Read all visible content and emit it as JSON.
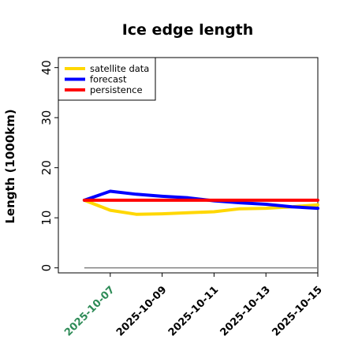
{
  "chart_data": {
    "type": "line",
    "title": "Ice edge length",
    "xlabel": "",
    "ylabel": "Length (1000km)",
    "ylim": [
      -1,
      42
    ],
    "yticks": [
      0,
      10,
      20,
      30,
      40
    ],
    "x": [
      "2025-10-06",
      "2025-10-07",
      "2025-10-08",
      "2025-10-09",
      "2025-10-10",
      "2025-10-11",
      "2025-10-12",
      "2025-10-13",
      "2025-10-14",
      "2025-10-15"
    ],
    "xticks": [
      "2025-10-07",
      "2025-10-09",
      "2025-10-11",
      "2025-10-13",
      "2025-10-15"
    ],
    "xtick_colors": [
      "#2e8b57",
      "#000000",
      "#000000",
      "#000000",
      "#000000"
    ],
    "xlim": [
      "2025-10-05",
      "2025-10-15"
    ],
    "grid": false,
    "legend_position": "top-left",
    "series": [
      {
        "name": "satellite data",
        "color": "#FFD700",
        "values": [
          13.5,
          11.5,
          10.7,
          10.8,
          11.0,
          11.2,
          11.8,
          11.9,
          12.2,
          12.6
        ]
      },
      {
        "name": "forecast",
        "color": "#0000FF",
        "values": [
          13.5,
          15.3,
          14.7,
          14.3,
          14.0,
          13.4,
          13.0,
          12.7,
          12.2,
          11.9
        ]
      },
      {
        "name": "persistence",
        "color": "#FF0000",
        "values": [
          13.5,
          13.5,
          13.5,
          13.5,
          13.5,
          13.5,
          13.5,
          13.5,
          13.5,
          13.5
        ]
      }
    ],
    "reference_line": {
      "y": 0,
      "color": "#808080"
    }
  }
}
